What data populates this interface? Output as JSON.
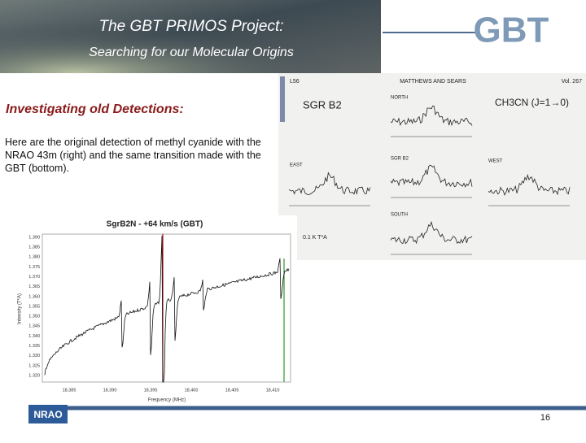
{
  "header": {
    "title": "The GBT PRIMOS Project:",
    "subtitle": "Searching for our Molecular Origins",
    "logo": "GBT"
  },
  "section": {
    "heading": "Investigating old Detections:",
    "body": "Here are the original detection of methyl cyanide with the NRAO 43m (right) and the same transition made with the GBT (bottom)."
  },
  "old_figure": {
    "page_label": "L56",
    "running_head": "MATTHEWS AND SEARS",
    "volume": "Vol. 267",
    "source": "SGR B2",
    "molecule": "CH3CN (J=1→0)",
    "panels": [
      "NORTH",
      "EAST",
      "SGR B2",
      "WEST",
      "SOUTH"
    ],
    "scale_label": "0.1 K T*A"
  },
  "gbt_plot": {
    "title": "SgrB2N - +64 km/s (GBT)",
    "y_label": "Intensity (T*A)",
    "x_label": "Frequency (MHz)",
    "y_ticks": [
      "1.390",
      "1.385",
      "1.380",
      "1.375",
      "1.370",
      "1.365",
      "1.360",
      "1.355",
      "1.350",
      "1.345",
      "1.340",
      "1.335",
      "1.330",
      "1.325",
      "1.320"
    ],
    "x_ticks": [
      "18,385",
      "18,390",
      "18,395",
      "18,400",
      "18,405",
      "18,410"
    ]
  },
  "footer": {
    "logo": "NRAO",
    "page_number": "16"
  }
}
